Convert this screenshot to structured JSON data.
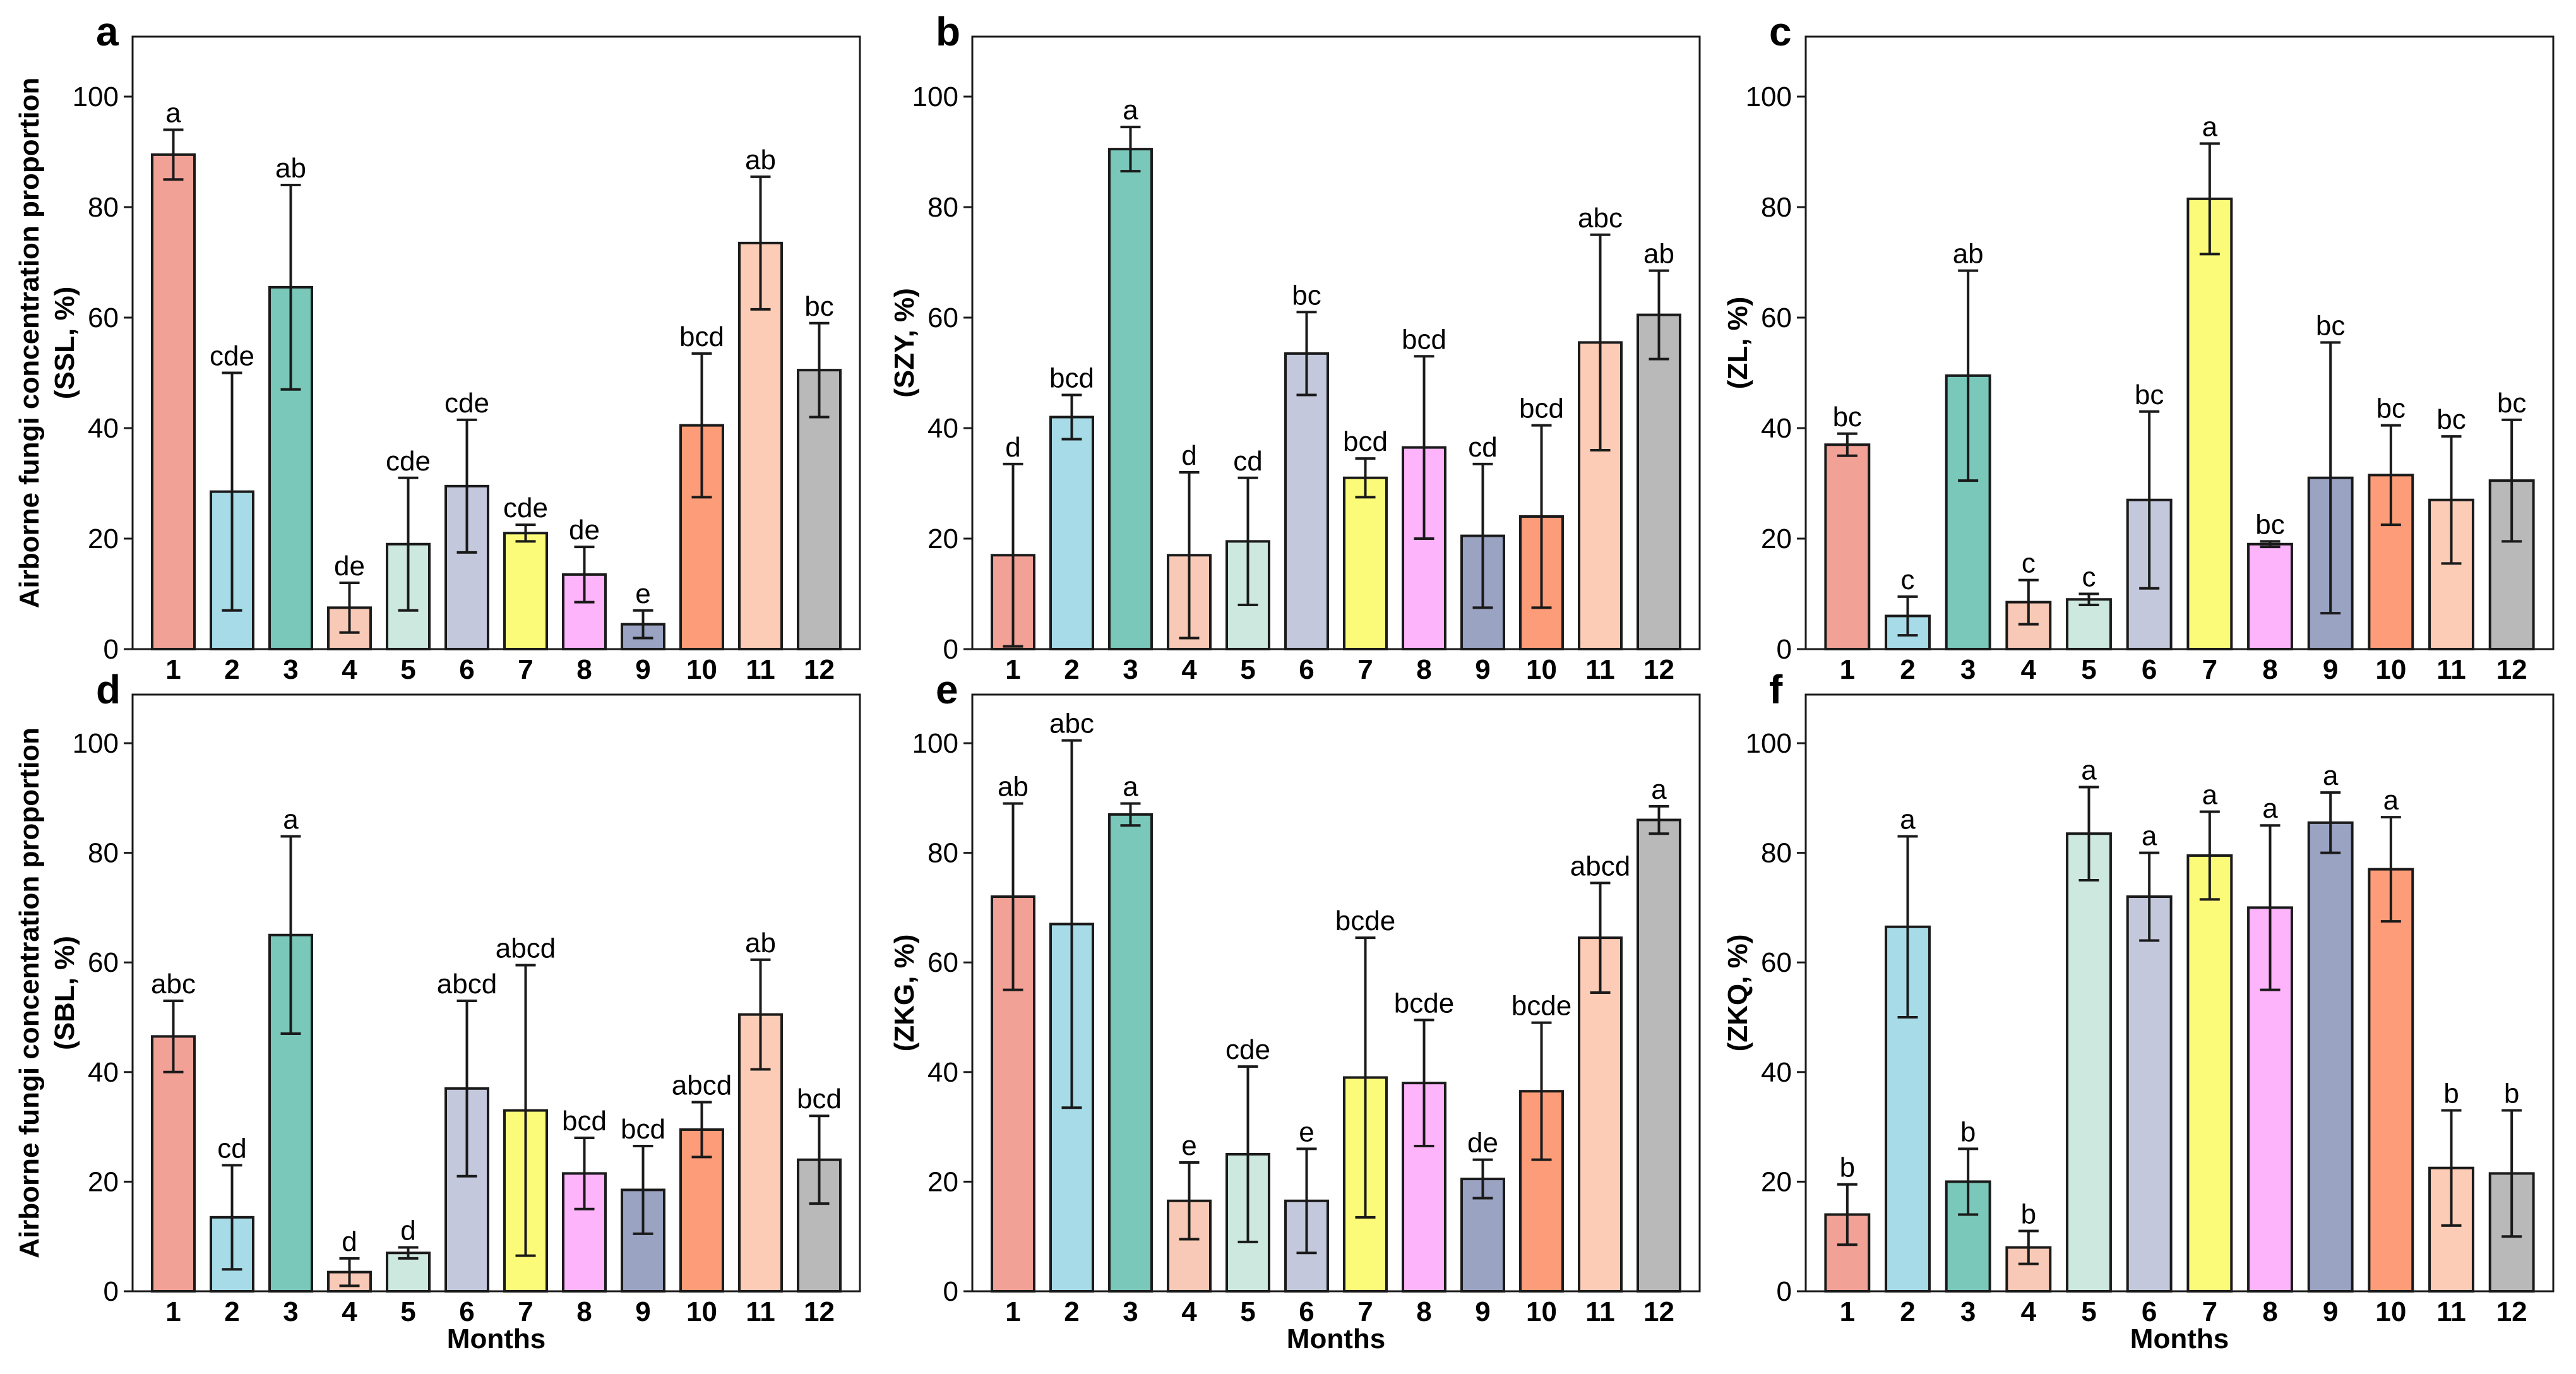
{
  "chart_data": [
    {
      "type": "bar",
      "panel_letter": "a",
      "categories": [
        "1",
        "2",
        "3",
        "4",
        "5",
        "6",
        "7",
        "8",
        "9",
        "10",
        "11",
        "12"
      ],
      "values": [
        89.5,
        28.5,
        65.5,
        7.5,
        19,
        29.5,
        21,
        13.5,
        4.5,
        40.5,
        73.5,
        50.5
      ],
      "errors": [
        4.5,
        21.5,
        18.5,
        4.5,
        12,
        12,
        1.5,
        5,
        2.5,
        13,
        12,
        8.5
      ],
      "sig_letters": [
        "a",
        "cde",
        "ab",
        "de",
        "cde",
        "cde",
        "cde",
        "de",
        "e",
        "bcd",
        "ab",
        "bc"
      ],
      "yticks": [
        "0",
        "20",
        "40",
        "60",
        "80",
        "100"
      ],
      "ylim": [
        0,
        108
      ],
      "ylabel_line1": "Airborne fungi concentration proportion",
      "ylabel_line2": "(SSL, %)",
      "xlabel": ""
    },
    {
      "type": "bar",
      "panel_letter": "b",
      "categories": [
        "1",
        "2",
        "3",
        "4",
        "5",
        "6",
        "7",
        "8",
        "9",
        "10",
        "11",
        "12"
      ],
      "values": [
        17,
        42,
        90.5,
        17,
        19.5,
        53.5,
        31,
        36.5,
        20.5,
        24,
        55.5,
        60.5
      ],
      "errors": [
        16.5,
        4,
        4,
        15,
        11.5,
        7.5,
        3.5,
        16.5,
        13,
        16.5,
        19.5,
        8
      ],
      "sig_letters": [
        "d",
        "bcd",
        "a",
        "d",
        "cd",
        "bc",
        "bcd",
        "bcd",
        "cd",
        "bcd",
        "abc",
        "ab"
      ],
      "yticks": [
        "0",
        "20",
        "40",
        "60",
        "80",
        "100"
      ],
      "ylim": [
        0,
        108
      ],
      "ylabel_line1": "",
      "ylabel_line2": "(SZY, %)",
      "xlabel": ""
    },
    {
      "type": "bar",
      "panel_letter": "c",
      "categories": [
        "1",
        "2",
        "3",
        "4",
        "5",
        "6",
        "7",
        "8",
        "9",
        "10",
        "11",
        "12"
      ],
      "values": [
        37,
        6,
        49.5,
        8.5,
        9,
        27,
        81.5,
        19,
        31,
        31.5,
        27,
        30.5
      ],
      "errors": [
        2,
        3.5,
        19,
        4,
        1,
        16,
        10,
        0.5,
        24.5,
        9,
        11.5,
        11
      ],
      "sig_letters": [
        "bc",
        "c",
        "ab",
        "c",
        "c",
        "bc",
        "a",
        "bc",
        "bc",
        "bc",
        "bc",
        "bc"
      ],
      "yticks": [
        "0",
        "20",
        "40",
        "60",
        "80",
        "100"
      ],
      "ylim": [
        0,
        108
      ],
      "ylabel_line1": "",
      "ylabel_line2": "(ZL, %)",
      "xlabel": ""
    },
    {
      "type": "bar",
      "panel_letter": "d",
      "categories": [
        "1",
        "2",
        "3",
        "4",
        "5",
        "6",
        "7",
        "8",
        "9",
        "10",
        "11",
        "12"
      ],
      "values": [
        46.5,
        13.5,
        65,
        3.5,
        7,
        37,
        33,
        21.5,
        18.5,
        29.5,
        50.5,
        24
      ],
      "errors": [
        6.5,
        9.5,
        18,
        2.5,
        1,
        16,
        26.5,
        6.5,
        8,
        5,
        10,
        8
      ],
      "sig_letters": [
        "abc",
        "cd",
        "a",
        "d",
        "d",
        "abcd",
        "abcd",
        "bcd",
        "bcd",
        "abcd",
        "ab",
        "bcd"
      ],
      "yticks": [
        "0",
        "20",
        "40",
        "60",
        "80",
        "100"
      ],
      "ylim": [
        0,
        108
      ],
      "ylabel_line1": "Airborne fungi concentration proportion",
      "ylabel_line2": "(SBL, %)",
      "xlabel": "Months"
    },
    {
      "type": "bar",
      "panel_letter": "e",
      "categories": [
        "1",
        "2",
        "3",
        "4",
        "5",
        "6",
        "7",
        "8",
        "9",
        "10",
        "11",
        "12"
      ],
      "values": [
        72,
        67,
        87,
        16.5,
        25,
        16.5,
        39,
        38,
        20.5,
        36.5,
        64.5,
        86
      ],
      "errors": [
        17,
        33.5,
        2,
        7,
        16,
        9.5,
        25.5,
        11.5,
        3.5,
        12.5,
        10,
        2.5
      ],
      "sig_letters": [
        "ab",
        "abc",
        "a",
        "e",
        "cde",
        "e",
        "bcde",
        "bcde",
        "de",
        "bcde",
        "abcd",
        "a"
      ],
      "yticks": [
        "0",
        "20",
        "40",
        "60",
        "80",
        "100"
      ],
      "ylim": [
        0,
        108
      ],
      "ylabel_line1": "",
      "ylabel_line2": "(ZKG, %)",
      "xlabel": "Months"
    },
    {
      "type": "bar",
      "panel_letter": "f",
      "categories": [
        "1",
        "2",
        "3",
        "4",
        "5",
        "6",
        "7",
        "8",
        "9",
        "10",
        "11",
        "12"
      ],
      "values": [
        14,
        66.5,
        20,
        8,
        83.5,
        72,
        79.5,
        70,
        85.5,
        77,
        22.5,
        21.5
      ],
      "errors": [
        5.5,
        16.5,
        6,
        3,
        8.5,
        8,
        8,
        15,
        5.5,
        9.5,
        10.5,
        11.5
      ],
      "sig_letters": [
        "b",
        "a",
        "b",
        "b",
        "a",
        "a",
        "a",
        "a",
        "a",
        "a",
        "b",
        "b"
      ],
      "yticks": [
        "0",
        "20",
        "40",
        "60",
        "80",
        "100"
      ],
      "ylim": [
        0,
        108
      ],
      "ylabel_line1": "",
      "ylabel_line2": "(ZKQ, %)",
      "xlabel": "Months"
    }
  ],
  "colors": {
    "bars": [
      "#f2a196",
      "#a7dbe8",
      "#79c8ba",
      "#f8c9b6",
      "#cde8de",
      "#c3c8dc",
      "#fbfb79",
      "#fdb4fb",
      "#9ba3c3",
      "#fc9c78",
      "#fdccb7",
      "#b9b9b9"
    ],
    "frame": "#1a1a1a",
    "background": "#ffffff"
  }
}
